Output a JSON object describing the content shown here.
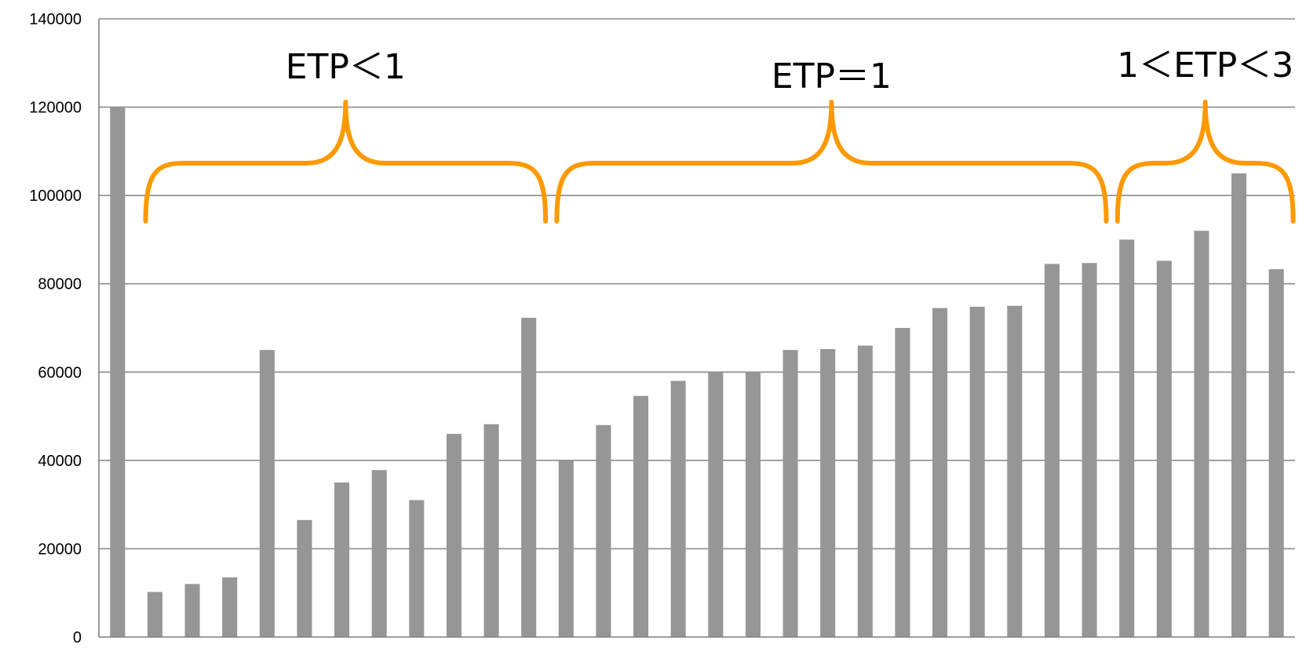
{
  "chart_data": {
    "type": "bar",
    "title": "",
    "xlabel": "",
    "ylabel": "",
    "ylim": [
      0,
      140000
    ],
    "yticks": [
      0,
      20000,
      40000,
      60000,
      80000,
      100000,
      120000,
      140000
    ],
    "ytick_labels": [
      "0",
      "20000",
      "40000",
      "60000",
      "80000",
      "100000",
      "120000",
      "140000"
    ],
    "grid": true,
    "legend": "none",
    "values": [
      120000,
      10200,
      12000,
      13500,
      65000,
      26500,
      35000,
      37800,
      31000,
      46000,
      48200,
      72300,
      40000,
      48000,
      54600,
      58000,
      60000,
      60000,
      65000,
      65200,
      66000,
      70000,
      74500,
      74800,
      75000,
      84500,
      84700,
      90000,
      85200,
      92000,
      105000,
      83300
    ],
    "bar_color": "#969696",
    "annotations": [
      {
        "text": "ETP＜1",
        "color": "#ff9900",
        "first_bar": 1,
        "last_bar": 11
      },
      {
        "text": "ETP＝1",
        "color": "#ff9900",
        "first_bar": 12,
        "last_bar": 26
      },
      {
        "text": "1＜ETP＜3",
        "color": "#ff9900",
        "first_bar": 27,
        "last_bar": 31
      }
    ]
  }
}
